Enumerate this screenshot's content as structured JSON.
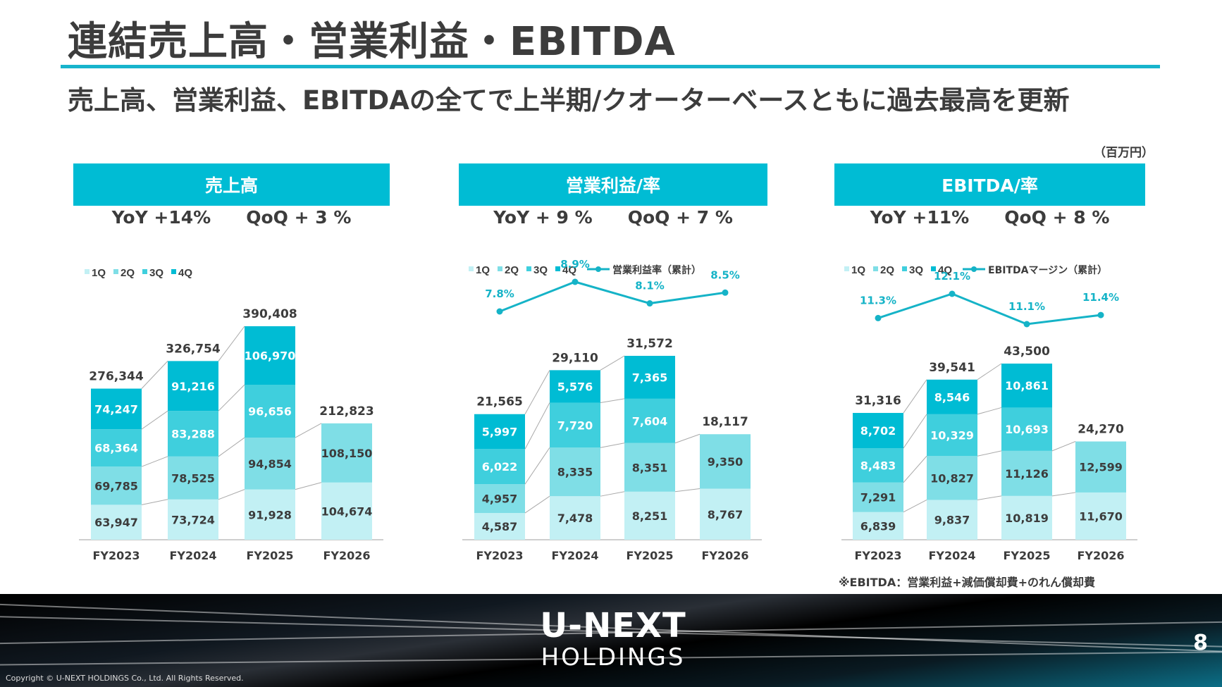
{
  "title": "連結売上高・営業利益・EBITDA",
  "subtitle": "売上高、営業利益、EBITDAの全てで上半期/クオーターベースともに過去最高を更新",
  "unit": "（百万円）",
  "colors": {
    "q1": "#c2f0f4",
    "q2": "#7fdee6",
    "q3": "#3fcfdd",
    "q4": "#00bcd4",
    "line": "#15b3c7",
    "header": "#00bcd4"
  },
  "panels": [
    {
      "header": "売上高",
      "yoy": "YoY +14%",
      "qoq": "QoQ + 3 %"
    },
    {
      "header": "営業利益/率",
      "yoy": "YoY + 9 %",
      "qoq": "QoQ + 7 %"
    },
    {
      "header": "EBITDA/率",
      "yoy": "YoY +11%",
      "qoq": "QoQ + 8 %"
    }
  ],
  "chart_data": [
    {
      "type": "bar",
      "stacked": true,
      "categories": [
        "FY2023",
        "FY2024",
        "FY2025",
        "FY2026"
      ],
      "legend": [
        "1Q",
        "2Q",
        "3Q",
        "4Q"
      ],
      "series": [
        {
          "name": "1Q",
          "values": [
            63947,
            73724,
            91928,
            104674
          ],
          "labels": [
            "63,947",
            "73,724",
            "91,928",
            "104,674"
          ]
        },
        {
          "name": "2Q",
          "values": [
            69785,
            78525,
            94854,
            108150
          ],
          "labels": [
            "69,785",
            "78,525",
            "94,854",
            "108,150"
          ]
        },
        {
          "name": "3Q",
          "values": [
            68364,
            83288,
            96656,
            null
          ],
          "labels": [
            "68,364",
            "83,288",
            "96,656",
            ""
          ]
        },
        {
          "name": "4Q",
          "values": [
            74247,
            91216,
            106970,
            null
          ],
          "labels": [
            "74,247",
            "91,216",
            "106,970",
            ""
          ]
        }
      ],
      "totals": [
        "276,344",
        "326,754",
        "390,408",
        "212,823"
      ],
      "ymax": 390408
    },
    {
      "type": "bar",
      "stacked": true,
      "categories": [
        "FY2023",
        "FY2024",
        "FY2025",
        "FY2026"
      ],
      "legend": [
        "1Q",
        "2Q",
        "3Q",
        "4Q",
        "営業利益率（累計）"
      ],
      "series": [
        {
          "name": "1Q",
          "values": [
            4587,
            7478,
            8251,
            8767
          ],
          "labels": [
            "4,587",
            "7,478",
            "8,251",
            "8,767"
          ]
        },
        {
          "name": "2Q",
          "values": [
            4957,
            8335,
            8351,
            9350
          ],
          "labels": [
            "4,957",
            "8,335",
            "8,351",
            "9,350"
          ]
        },
        {
          "name": "3Q",
          "values": [
            6022,
            7720,
            7604,
            null
          ],
          "labels": [
            "6,022",
            "7,720",
            "7,604",
            ""
          ]
        },
        {
          "name": "4Q",
          "values": [
            5997,
            5576,
            7365,
            null
          ],
          "labels": [
            "5,997",
            "5,576",
            "7,365",
            ""
          ]
        }
      ],
      "totals": [
        "21,565",
        "29,110",
        "31,572",
        "18,117"
      ],
      "ymax": 31572,
      "line": {
        "name": "営業利益率（累計）",
        "values": [
          7.8,
          8.9,
          8.1,
          8.5
        ],
        "labels": [
          "7.8%",
          "8.9%",
          "8.1%",
          "8.5%"
        ],
        "range": [
          7.8,
          8.9
        ]
      }
    },
    {
      "type": "bar",
      "stacked": true,
      "categories": [
        "FY2023",
        "FY2024",
        "FY2025",
        "FY2026"
      ],
      "legend": [
        "1Q",
        "2Q",
        "3Q",
        "4Q",
        "EBITDAマージン（累計）"
      ],
      "series": [
        {
          "name": "1Q",
          "values": [
            6839,
            9837,
            10819,
            11670
          ],
          "labels": [
            "6,839",
            "9,837",
            "10,819",
            "11,670"
          ]
        },
        {
          "name": "2Q",
          "values": [
            7291,
            10827,
            11126,
            12599
          ],
          "labels": [
            "7,291",
            "10,827",
            "11,126",
            "12,599"
          ]
        },
        {
          "name": "3Q",
          "values": [
            8483,
            10329,
            10693,
            null
          ],
          "labels": [
            "8,483",
            "10,329",
            "10,693",
            ""
          ]
        },
        {
          "name": "4Q",
          "values": [
            8702,
            8546,
            10861,
            null
          ],
          "labels": [
            "8,702",
            "8,546",
            "10,861",
            ""
          ]
        }
      ],
      "totals": [
        "31,316",
        "39,541",
        "43,500",
        "24,270"
      ],
      "ymax": 43500,
      "line": {
        "name": "EBITDAマージン（累計）",
        "values": [
          11.3,
          12.1,
          11.1,
          11.4
        ],
        "labels": [
          "11.3%",
          "12.1%",
          "11.1%",
          "11.4%"
        ],
        "range": [
          11.1,
          12.1
        ]
      }
    }
  ],
  "footnote": "※EBITDA：営業利益+減価償却費+のれん償却費",
  "footer": {
    "logo_line1": "U-NEXT",
    "logo_line2": "HOLDINGS",
    "page_number": "8",
    "copyright": "Copyright © U-NEXT HOLDINGS Co., Ltd. All Rights Reserved."
  }
}
